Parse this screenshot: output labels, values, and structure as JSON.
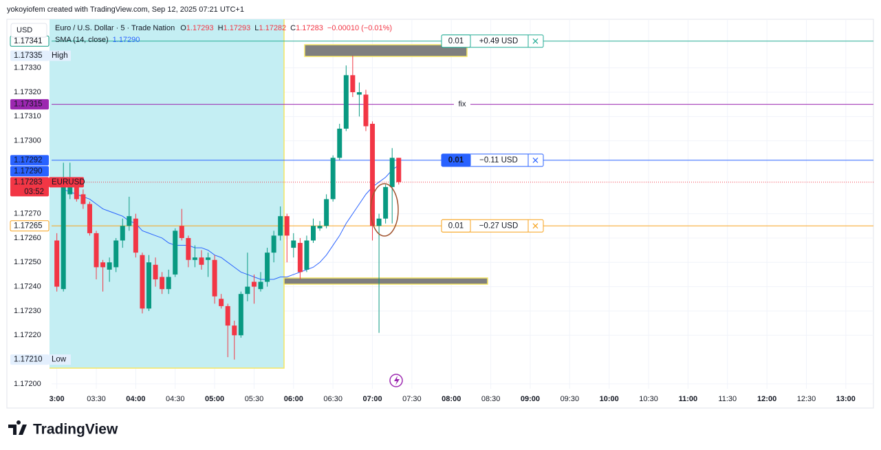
{
  "chart_data": {
    "type": "candlestick",
    "header": "yokoyiofem created with TradingView.com, Sep 12, 2025 07:21 UTC+1",
    "logo": "TradingView",
    "currency": "USD",
    "title": "Euro / U.S. Dollar · 5 · Trade Nation",
    "ohlc": [
      {
        "key": "O",
        "value": 1.17293
      },
      {
        "key": "H",
        "value": 1.17293
      },
      {
        "key": "L",
        "value": 1.17282
      },
      {
        "key": "C",
        "value": 1.17283
      }
    ],
    "change": "−0.00010 (−0.01%)",
    "x": [
      "03:00",
      "03:05",
      "03:10",
      "03:15",
      "03:20",
      "03:25",
      "03:30",
      "03:35",
      "03:40",
      "03:45",
      "03:50",
      "03:55",
      "04:00",
      "04:05",
      "04:10",
      "04:15",
      "04:20",
      "04:25",
      "04:30",
      "04:35",
      "04:40",
      "04:45",
      "04:50",
      "04:55",
      "05:00",
      "05:05",
      "05:10",
      "05:15",
      "05:20",
      "05:25",
      "05:30",
      "05:35",
      "05:40",
      "05:45",
      "05:50",
      "05:55",
      "06:00",
      "06:05",
      "06:10",
      "06:15",
      "06:20",
      "06:25",
      "06:30",
      "06:35",
      "06:40",
      "06:45",
      "06:50",
      "06:55",
      "07:00",
      "07:05",
      "07:10",
      "07:15",
      "07:20"
    ],
    "series": [
      {
        "name": "EURUSD",
        "up_color": "#089981",
        "down_color": "#f23645",
        "open": [
          1.17259,
          1.17239,
          1.17278,
          1.17281,
          1.17278,
          1.17274,
          1.17262,
          1.1725,
          1.17247,
          1.17248,
          1.17259,
          1.17265,
          1.17268,
          1.17253,
          1.17231,
          1.17249,
          1.17244,
          1.17239,
          1.17245,
          1.17265,
          1.1726,
          1.17251,
          1.17252,
          1.17251,
          1.17251,
          1.17235,
          1.17232,
          1.17224,
          1.1722,
          1.17237,
          1.17242,
          1.17239,
          1.17242,
          1.17254,
          1.17261,
          1.17269,
          1.17256,
          1.17258,
          1.17247,
          1.17259,
          1.17264,
          1.17265,
          1.17276,
          1.17293,
          1.17305,
          1.17327,
          1.17319,
          1.17319,
          1.17307,
          1.17265,
          1.17268,
          1.17281,
          1.17293
        ],
        "high": [
          1.17262,
          1.17291,
          1.17291,
          1.17284,
          1.1728,
          1.17275,
          1.17263,
          1.17251,
          1.17252,
          1.1726,
          1.17268,
          1.17277,
          1.1727,
          1.17254,
          1.17253,
          1.17252,
          1.17246,
          1.17247,
          1.17264,
          1.17272,
          1.17261,
          1.17257,
          1.17255,
          1.17254,
          1.17253,
          1.17237,
          1.17233,
          1.17226,
          1.17238,
          1.17254,
          1.17245,
          1.17246,
          1.17256,
          1.17263,
          1.17273,
          1.1727,
          1.17262,
          1.1726,
          1.17261,
          1.17268,
          1.17267,
          1.17278,
          1.17294,
          1.17307,
          1.17331,
          1.17335,
          1.17324,
          1.17321,
          1.17308,
          1.1727,
          1.17282,
          1.17297,
          1.17293
        ],
        "low": [
          1.17238,
          1.17238,
          1.17276,
          1.17275,
          1.17272,
          1.17261,
          1.17243,
          1.17238,
          1.17242,
          1.17246,
          1.17256,
          1.17263,
          1.17252,
          1.17229,
          1.1723,
          1.1724,
          1.17237,
          1.17237,
          1.17244,
          1.17259,
          1.17248,
          1.17248,
          1.17247,
          1.17244,
          1.17233,
          1.17231,
          1.17211,
          1.1721,
          1.17219,
          1.17234,
          1.17233,
          1.17238,
          1.1724,
          1.1725,
          1.17259,
          1.1725,
          1.17252,
          1.17243,
          1.17246,
          1.17258,
          1.17263,
          1.17264,
          1.17275,
          1.17292,
          1.17304,
          1.17318,
          1.1731,
          1.17304,
          1.17259,
          1.17221,
          1.17266,
          1.17266,
          1.17282
        ],
        "close": [
          1.1724,
          1.17283,
          1.17283,
          1.17276,
          1.17274,
          1.17262,
          1.17248,
          1.17248,
          1.1725,
          1.17259,
          1.17265,
          1.17269,
          1.17254,
          1.17231,
          1.1725,
          1.17243,
          1.17239,
          1.17244,
          1.17263,
          1.1726,
          1.17251,
          1.17252,
          1.17249,
          1.17252,
          1.17236,
          1.17232,
          1.17224,
          1.1722,
          1.17237,
          1.1724,
          1.1724,
          1.17242,
          1.17254,
          1.17261,
          1.17269,
          1.17261,
          1.17259,
          1.17246,
          1.17259,
          1.17265,
          1.17265,
          1.17276,
          1.17293,
          1.17305,
          1.17327,
          1.1732,
          1.1732,
          1.17306,
          1.17265,
          1.17268,
          1.17281,
          1.17293,
          1.17283
        ]
      },
      {
        "name": "SMA (14, close)",
        "color": "#2962ff",
        "last_label": "1.17290",
        "values": [
          null,
          1.1728,
          1.17279,
          1.17278,
          1.17277,
          1.17276,
          1.17274,
          1.17272,
          1.17271,
          1.1727,
          1.17269,
          1.17267,
          1.17266,
          1.17263,
          1.17262,
          1.17261,
          1.1726,
          1.17258,
          1.17257,
          1.17257,
          1.17257,
          1.17256,
          1.17256,
          1.17255,
          1.17253,
          1.17252,
          1.1725,
          1.17248,
          1.17246,
          1.17245,
          1.17244,
          1.17243,
          1.17243,
          1.17243,
          1.17244,
          1.17244,
          1.17245,
          1.17246,
          1.17247,
          1.17248,
          1.1725,
          1.17253,
          1.17257,
          1.17261,
          1.17266,
          1.1727,
          1.17274,
          1.17278,
          1.17281,
          1.17283,
          1.17285,
          1.17288,
          1.1729
        ]
      }
    ],
    "xlim": [
      "02:22",
      "13:21"
    ],
    "xticks": [
      {
        "value": "03:00",
        "label": "3:00"
      },
      "03:30",
      "04:00",
      "04:30",
      "05:00",
      "05:30",
      "06:00",
      "06:30",
      "07:00",
      "07:30",
      "08:00",
      "08:30",
      "09:00",
      "09:30",
      "10:00",
      "10:30",
      "11:00",
      "11:30",
      "12:00",
      "12:30",
      "13:00"
    ],
    "ylim": [
      1.17198,
      1.1735
    ],
    "yticks": [
      {
        "value": 1.172,
        "label": "1.17200"
      },
      {
        "value": 1.1722,
        "label": "1.17220"
      },
      {
        "value": 1.1723,
        "label": "1.17230"
      },
      {
        "value": 1.1724,
        "label": "1.17240"
      },
      {
        "value": 1.1725,
        "label": "1.17250"
      },
      {
        "value": 1.1726,
        "label": "1.17260"
      },
      {
        "value": 1.1727,
        "label": "1.17270"
      },
      {
        "value": 1.173,
        "label": "1.17300"
      },
      {
        "value": 1.1731,
        "label": "1.17310"
      },
      {
        "value": 1.1732,
        "label": "1.17320"
      },
      {
        "value": 1.1733,
        "label": "1.17330"
      }
    ],
    "grid": true,
    "price_lines": [
      {
        "value": 1.17341,
        "color": "#22ab94",
        "qty": "0.01",
        "pnl": "+0.49 USD",
        "style": "outline"
      },
      {
        "value": 1.17315,
        "color": "#9c27b0",
        "text": "fix"
      },
      {
        "value": 1.17292,
        "color": "#2962ff",
        "qty": "0.01",
        "pnl": "−0.11 USD",
        "style": "fill"
      },
      {
        "value": 1.17283,
        "color": "#f23645",
        "dotted": true
      },
      {
        "value": 1.17265,
        "color": "#f7a21b",
        "qty": "0.01",
        "pnl": "−0.27 USD",
        "style": "outline"
      }
    ],
    "axis_labels": [
      {
        "value": 1.17341,
        "label": "1.17341",
        "style": "outline",
        "color": "#089981"
      },
      {
        "value": 1.17335,
        "label": "1.17335",
        "text": "High",
        "style": "plain"
      },
      {
        "value": 1.17315,
        "label": "1.17315",
        "style": "fill",
        "color": "#9c27b0"
      },
      {
        "value": 1.17292,
        "label": "1.17292",
        "style": "fill",
        "color": "#2962ff"
      },
      {
        "value": 1.1729,
        "label": "1.17290",
        "style": "fill",
        "color": "#2962ff"
      },
      {
        "value": 1.17283,
        "label": "1.17283",
        "style": "fill",
        "color": "#f23645",
        "symbol": "EURUSD",
        "countdown": "03:52"
      },
      {
        "value": 1.17265,
        "label": "1.17265",
        "style": "outline",
        "color": "#f7a21b"
      },
      {
        "value": 1.1721,
        "label": "1.17210",
        "text": "Low",
        "style": "plain"
      }
    ]
  }
}
